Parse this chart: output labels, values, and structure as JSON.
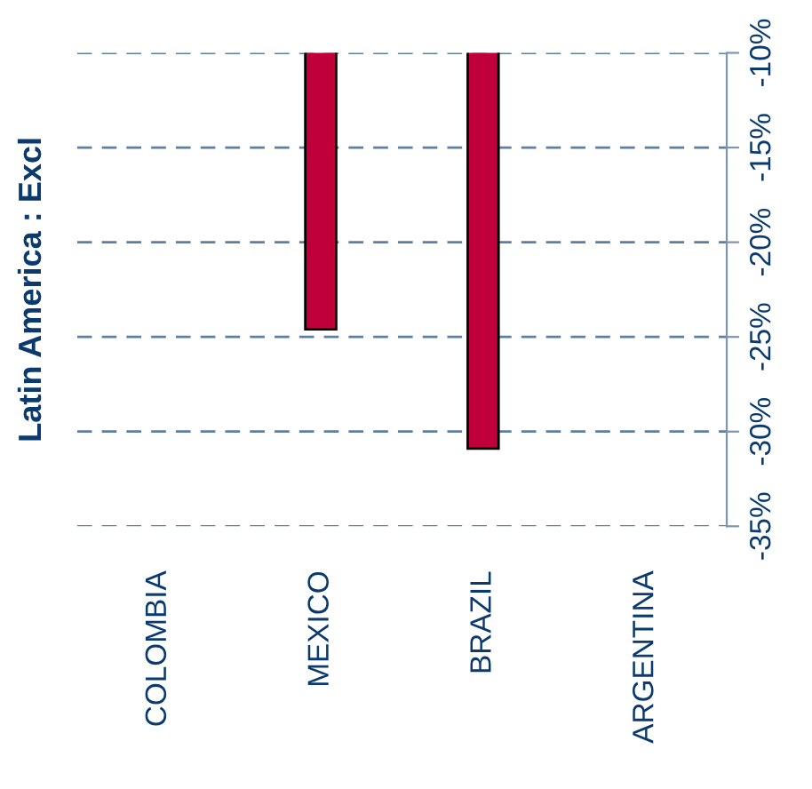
{
  "chart_data": {
    "type": "bar",
    "title": "Latin America : Excl",
    "categories": [
      "COLOMBIA",
      "MEXICO",
      "BRAZIL",
      "ARGENTINA"
    ],
    "series": [
      {
        "color": "#c0003a",
        "values": [
          null,
          -24.6,
          -30.9,
          null
        ]
      }
    ],
    "ylim": [
      -35,
      -10
    ],
    "yticks": [
      {
        "value": -35,
        "label": "-35%"
      },
      {
        "value": -30,
        "label": "-30%"
      },
      {
        "value": -25,
        "label": "-25%"
      },
      {
        "value": -20,
        "label": "-20%"
      },
      {
        "value": -15,
        "label": "-15%"
      },
      {
        "value": -10,
        "label": "-10%"
      }
    ],
    "grid": "y"
  }
}
